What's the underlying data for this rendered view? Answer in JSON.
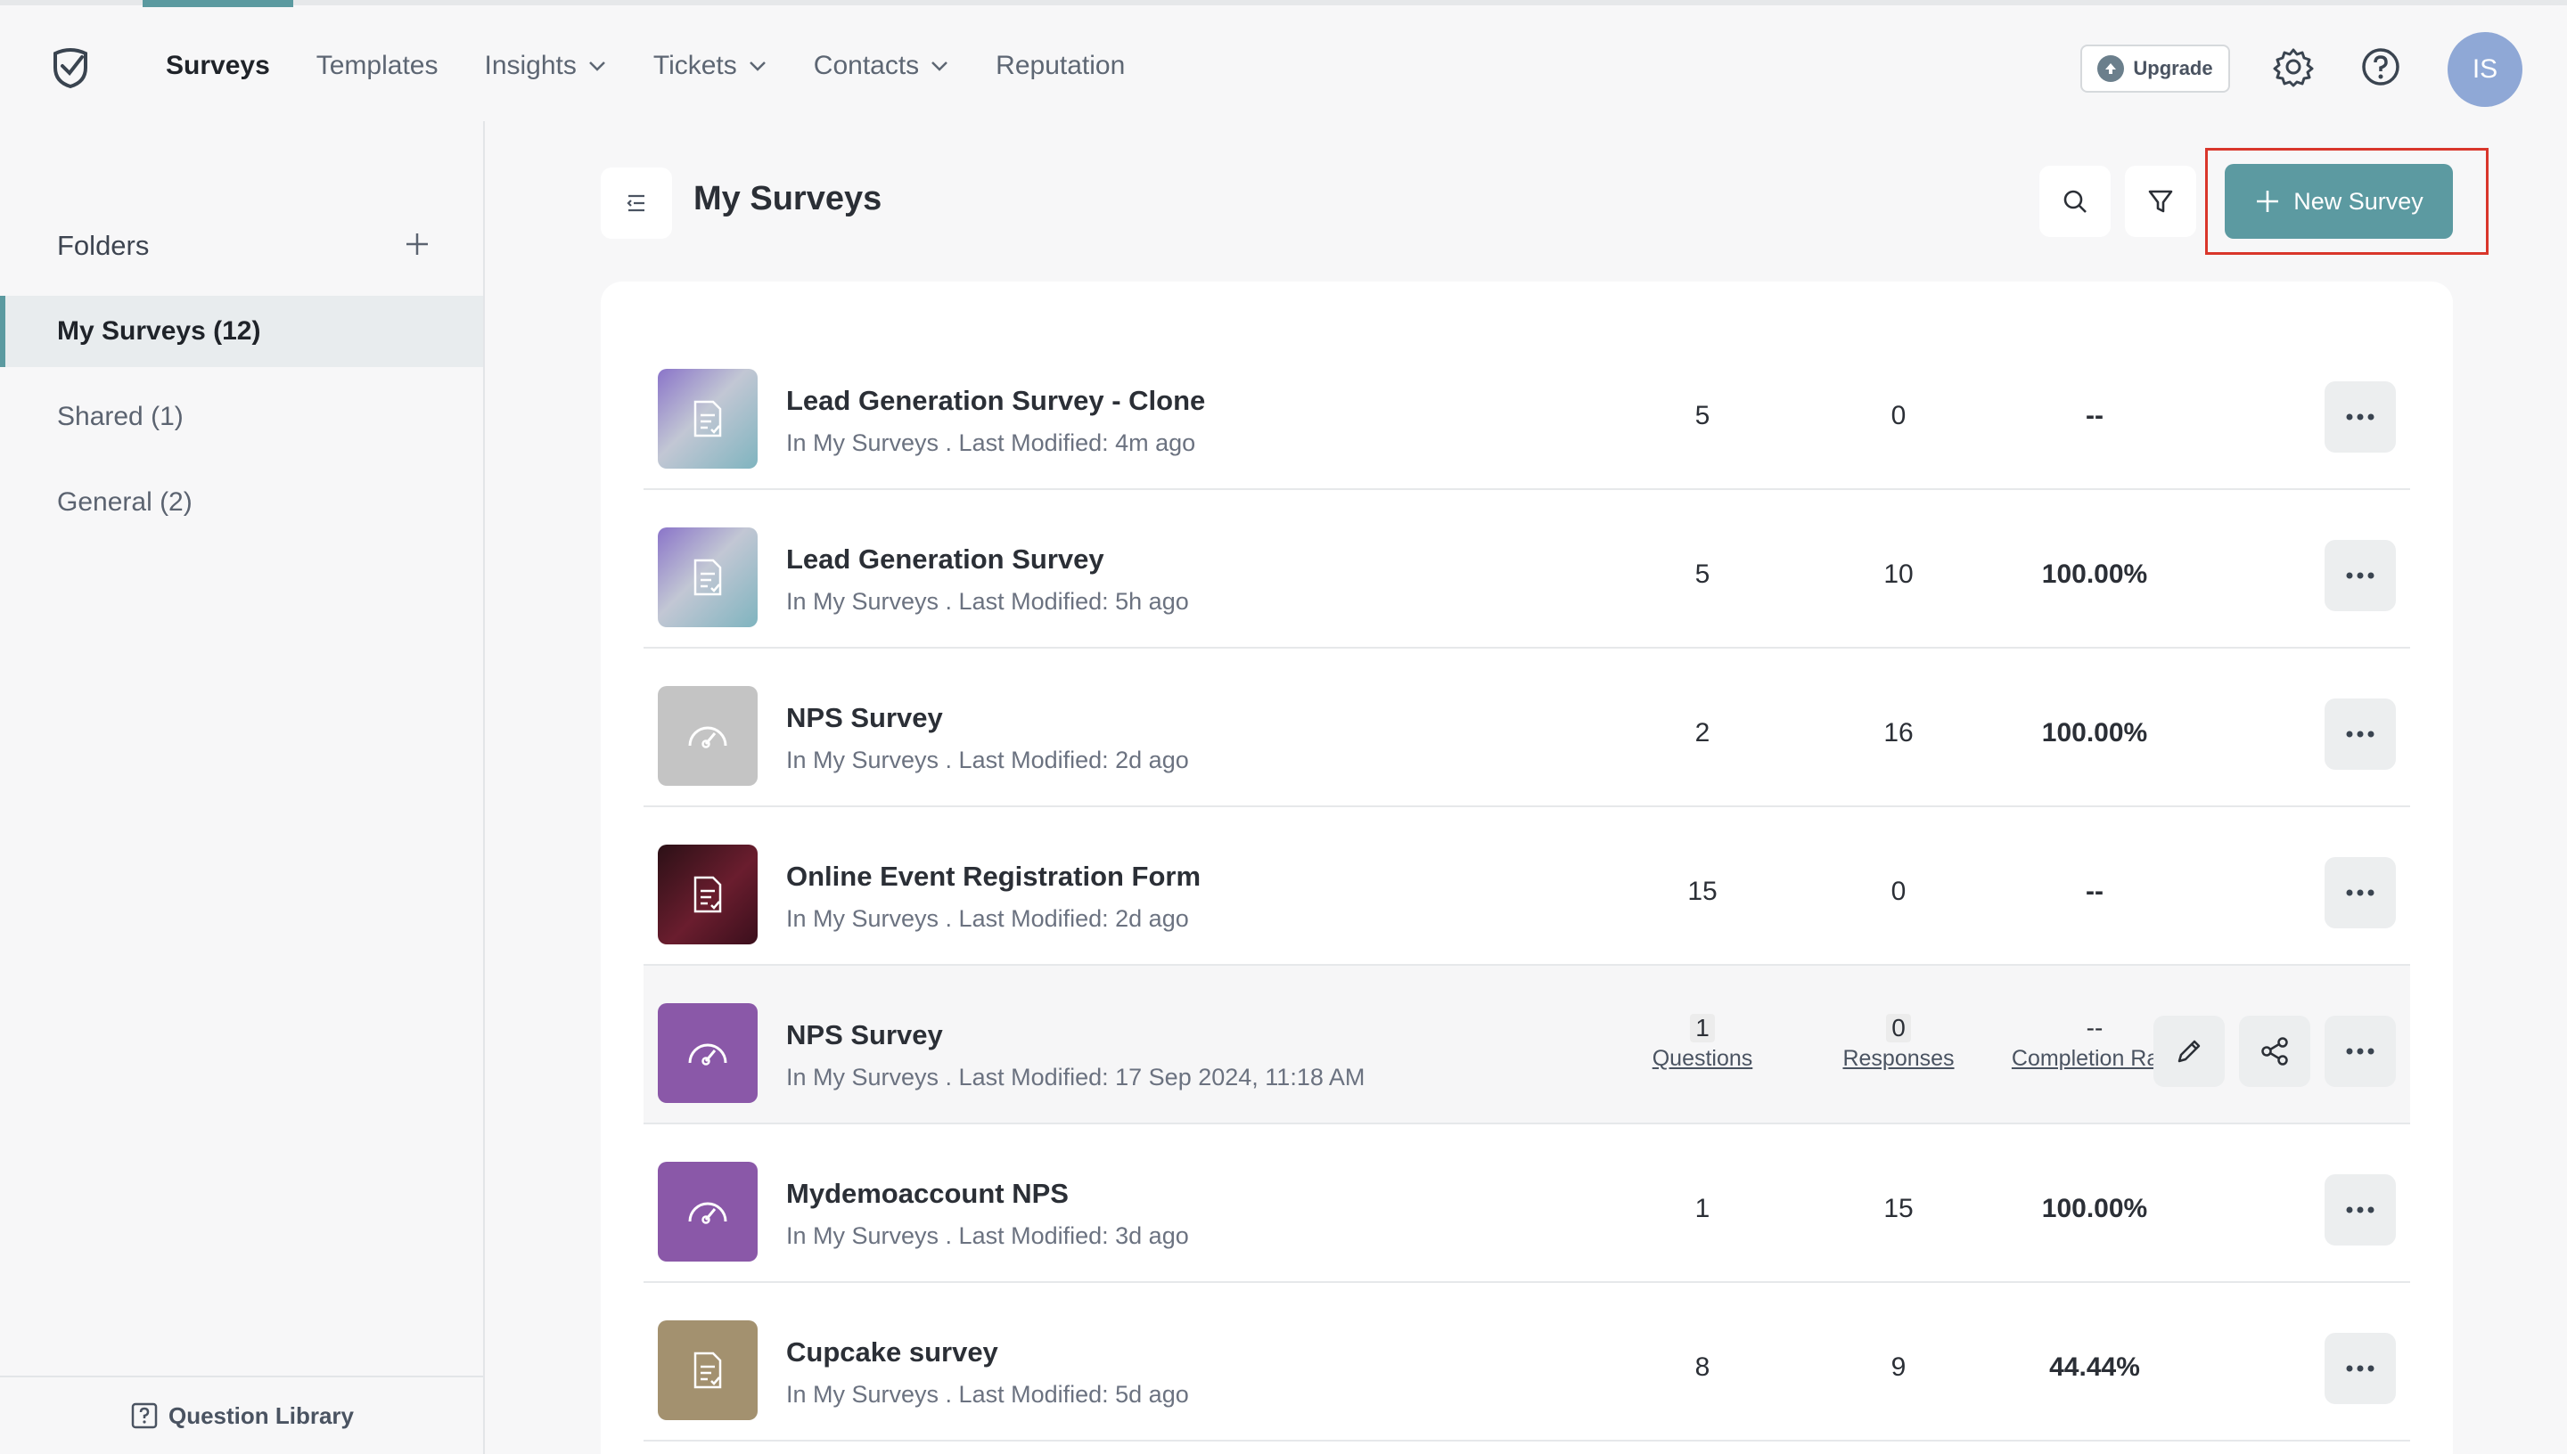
{
  "nav": {
    "items": [
      {
        "label": "Surveys",
        "active": true,
        "dropdown": false
      },
      {
        "label": "Templates",
        "active": false,
        "dropdown": false
      },
      {
        "label": "Insights",
        "active": false,
        "dropdown": true
      },
      {
        "label": "Tickets",
        "active": false,
        "dropdown": true
      },
      {
        "label": "Contacts",
        "active": false,
        "dropdown": true
      },
      {
        "label": "Reputation",
        "active": false,
        "dropdown": false
      }
    ],
    "upgrade_label": "Upgrade",
    "avatar_initials": "IS"
  },
  "sidebar": {
    "folders_label": "Folders",
    "folders": [
      {
        "label": "My Surveys (12)",
        "active": true
      },
      {
        "label": "Shared (1)",
        "active": false
      },
      {
        "label": "General (2)",
        "active": false
      }
    ],
    "question_library_label": "Question Library"
  },
  "main": {
    "title": "My Surveys",
    "new_survey_label": "New Survey"
  },
  "surveys": [
    {
      "name": "Lead Generation Survey - Clone",
      "meta": "In My Surveys . Last Modified: 4m ago",
      "questions": "5",
      "responses": "0",
      "completion": "--",
      "thumb": "gradient",
      "icon": "document-icon"
    },
    {
      "name": "Lead Generation Survey",
      "meta": "In My Surveys . Last Modified: 5h ago",
      "questions": "5",
      "responses": "10",
      "completion": "100.00%",
      "thumb": "gradient",
      "icon": "document-icon"
    },
    {
      "name": "NPS Survey",
      "meta": "In My Surveys . Last Modified: 2d ago",
      "questions": "2",
      "responses": "16",
      "completion": "100.00%",
      "thumb": "gray",
      "icon": "gauge-icon"
    },
    {
      "name": "Online Event Registration Form",
      "meta": "In My Surveys . Last Modified: 2d ago",
      "questions": "15",
      "responses": "0",
      "completion": "--",
      "thumb": "dark",
      "icon": "document-icon"
    },
    {
      "name": "NPS Survey",
      "meta": "In My Surveys . Last Modified: 17 Sep 2024, 11:18 AM",
      "questions": "1",
      "responses": "0",
      "completion": "--",
      "thumb": "purple",
      "icon": "gauge-icon",
      "hovered": true,
      "labels": {
        "questions": "Questions",
        "responses": "Responses",
        "completion": "Completion Rate"
      }
    },
    {
      "name": "Mydemoaccount NPS",
      "meta": "In My Surveys . Last Modified: 3d ago",
      "questions": "1",
      "responses": "15",
      "completion": "100.00%",
      "thumb": "purple",
      "icon": "gauge-icon"
    },
    {
      "name": "Cupcake survey",
      "meta": "In My Surveys . Last Modified: 5d ago",
      "questions": "8",
      "responses": "9",
      "completion": "44.44%",
      "thumb": "brown",
      "icon": "document-icon"
    }
  ],
  "colors": {
    "accent": "#5c9aa1",
    "highlight_frame": "#d9362b",
    "avatar": "#8fa8d6"
  }
}
